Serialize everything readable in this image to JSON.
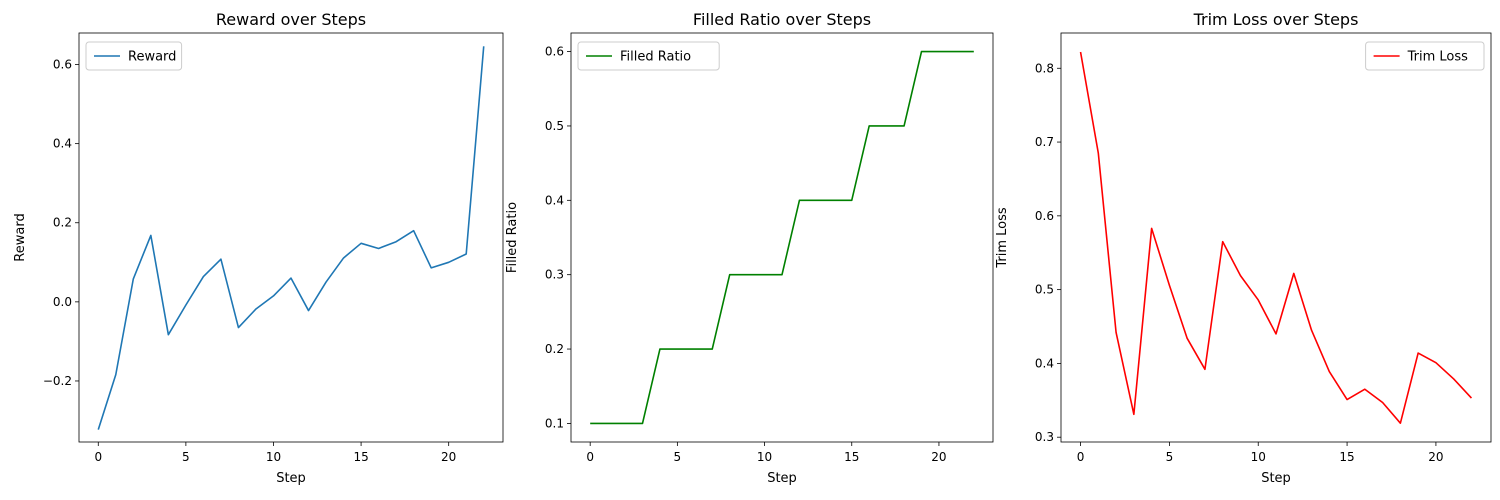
{
  "chart_data": [
    {
      "type": "line",
      "title": "Reward over Steps",
      "xlabel": "Step",
      "ylabel": "Reward",
      "xlim": [
        -1.1,
        23.1
      ],
      "ylim": [
        -0.3543,
        0.6797
      ],
      "xticks": [
        0,
        5,
        10,
        15,
        20
      ],
      "yticks": [
        -0.2,
        0.0,
        0.2,
        0.4,
        0.6
      ],
      "ytick_labels": [
        "−0.2",
        "0.0",
        "0.2",
        "0.4",
        "0.6"
      ],
      "legend_position": "upper-left",
      "series": [
        {
          "name": "Reward",
          "color": "#1f77b4",
          "x": [
            0,
            1,
            2,
            3,
            4,
            5,
            6,
            7,
            8,
            9,
            10,
            11,
            12,
            13,
            14,
            15,
            16,
            17,
            18,
            19,
            20,
            21,
            22
          ],
          "y": [
            -0.323,
            -0.184,
            0.058,
            0.168,
            -0.083,
            -0.008,
            0.064,
            0.108,
            -0.065,
            -0.018,
            0.015,
            0.06,
            -0.022,
            0.05,
            0.111,
            0.148,
            0.135,
            0.152,
            0.18,
            0.086,
            0.1,
            0.121,
            0.646
          ]
        }
      ]
    },
    {
      "type": "line",
      "title": "Filled Ratio over Steps",
      "xlabel": "Step",
      "ylabel": "Filled Ratio",
      "xlim": [
        -1.1,
        23.1
      ],
      "ylim": [
        0.075,
        0.625
      ],
      "xticks": [
        0,
        5,
        10,
        15,
        20
      ],
      "yticks": [
        0.1,
        0.2,
        0.3,
        0.4,
        0.5,
        0.6
      ],
      "ytick_labels": [
        "0.1",
        "0.2",
        "0.3",
        "0.4",
        "0.5",
        "0.6"
      ],
      "legend_position": "upper-left",
      "series": [
        {
          "name": "Filled Ratio",
          "color": "#008000",
          "x": [
            0,
            1,
            2,
            3,
            4,
            5,
            6,
            7,
            8,
            9,
            10,
            11,
            12,
            13,
            14,
            15,
            16,
            17,
            18,
            19,
            20,
            21,
            22
          ],
          "y": [
            0.1,
            0.1,
            0.1,
            0.1,
            0.2,
            0.2,
            0.2,
            0.2,
            0.3,
            0.3,
            0.3,
            0.3,
            0.4,
            0.4,
            0.4,
            0.4,
            0.5,
            0.5,
            0.5,
            0.6,
            0.6,
            0.6,
            0.6
          ]
        }
      ]
    },
    {
      "type": "line",
      "title": "Trim Loss over Steps",
      "xlabel": "Step",
      "ylabel": "Trim Loss",
      "xlim": [
        -1.1,
        23.1
      ],
      "ylim": [
        0.2935,
        0.8478
      ],
      "xticks": [
        0,
        5,
        10,
        15,
        20
      ],
      "yticks": [
        0.3,
        0.4,
        0.5,
        0.6,
        0.7,
        0.8
      ],
      "ytick_labels": [
        "0.3",
        "0.4",
        "0.5",
        "0.6",
        "0.7",
        "0.8"
      ],
      "legend_position": "upper-right",
      "series": [
        {
          "name": "Trim Loss",
          "color": "#ff0000",
          "x": [
            0,
            1,
            2,
            3,
            4,
            5,
            6,
            7,
            8,
            9,
            10,
            11,
            12,
            13,
            14,
            15,
            16,
            17,
            18,
            19,
            20,
            21,
            22
          ],
          "y": [
            0.822,
            0.685,
            0.442,
            0.331,
            0.583,
            0.506,
            0.434,
            0.392,
            0.565,
            0.519,
            0.486,
            0.44,
            0.522,
            0.445,
            0.389,
            0.351,
            0.365,
            0.347,
            0.319,
            0.414,
            0.401,
            0.379,
            0.353
          ]
        }
      ]
    }
  ]
}
